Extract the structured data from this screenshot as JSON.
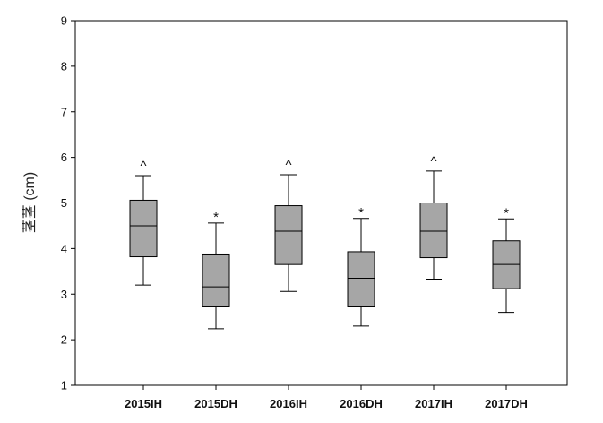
{
  "chart_data": {
    "type": "box",
    "ylabel": "茎茎 (cm)",
    "ylim": [
      1,
      9
    ],
    "yticks": [
      "1",
      "2",
      "3",
      "4",
      "5",
      "6",
      "7",
      "8",
      "9"
    ],
    "grid": false,
    "categories": [
      "2015IH",
      "2015DH",
      "2016IH",
      "2016DH",
      "2017IH",
      "2017DH"
    ],
    "boxes": [
      {
        "min": 3.2,
        "q1": 3.82,
        "median": 4.5,
        "q3": 5.06,
        "max": 5.6,
        "annotation": "^"
      },
      {
        "min": 2.24,
        "q1": 2.72,
        "median": 3.16,
        "q3": 3.88,
        "max": 4.56,
        "annotation": "*"
      },
      {
        "min": 3.06,
        "q1": 3.65,
        "median": 4.38,
        "q3": 4.94,
        "max": 5.62,
        "annotation": "^"
      },
      {
        "min": 2.3,
        "q1": 2.72,
        "median": 3.35,
        "q3": 3.93,
        "max": 4.66,
        "annotation": "*"
      },
      {
        "min": 3.33,
        "q1": 3.8,
        "median": 4.38,
        "q3": 5.0,
        "max": 5.7,
        "annotation": "^"
      },
      {
        "min": 2.6,
        "q1": 3.12,
        "median": 3.65,
        "q3": 4.17,
        "max": 4.65,
        "annotation": "*"
      }
    ],
    "colors": {
      "box_fill": "#a6a6a6",
      "stroke": "#000000",
      "background": "#ffffff"
    }
  }
}
